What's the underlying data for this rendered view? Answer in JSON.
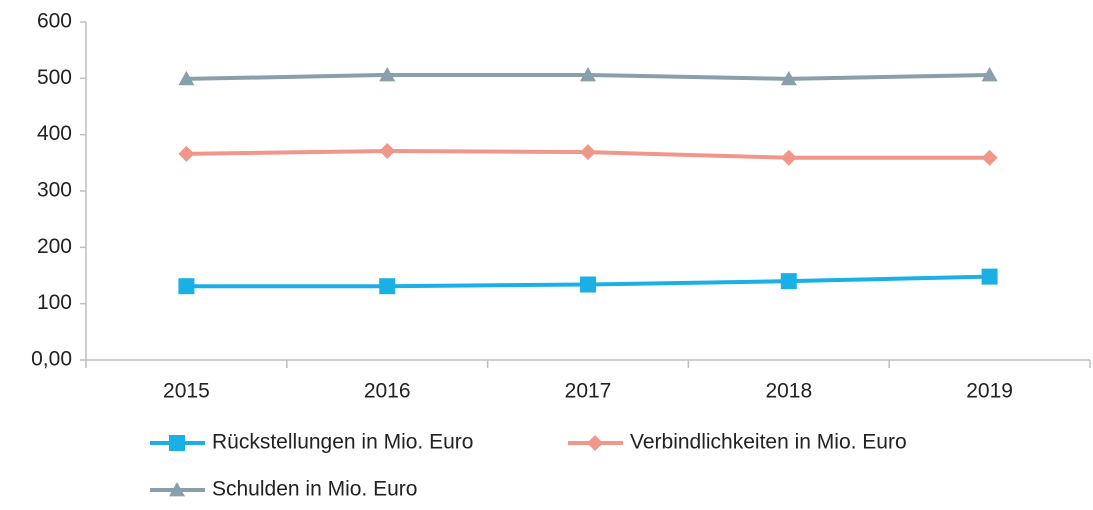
{
  "chart_data": {
    "type": "line",
    "categories": [
      "2015",
      "2016",
      "2017",
      "2018",
      "2019"
    ],
    "series": [
      {
        "name": "Rückstellungen in Mio. Euro",
        "color": "#1ab0e6",
        "marker": "square",
        "values": [
          131,
          131,
          134,
          140,
          148
        ]
      },
      {
        "name": "Verbindlichkeiten in Mio. Euro",
        "color": "#f0968a",
        "marker": "diamond",
        "values": [
          366,
          371,
          369,
          359,
          359
        ]
      },
      {
        "name": "Schulden in Mio. Euro",
        "color": "#8a9fac",
        "marker": "triangle",
        "values": [
          499,
          506,
          506,
          499,
          506
        ]
      }
    ],
    "ylim": [
      0,
      600
    ],
    "yticks": [
      {
        "value": 0,
        "label": "0,00"
      },
      100,
      200,
      300,
      400,
      500,
      600
    ],
    "grid": false
  }
}
